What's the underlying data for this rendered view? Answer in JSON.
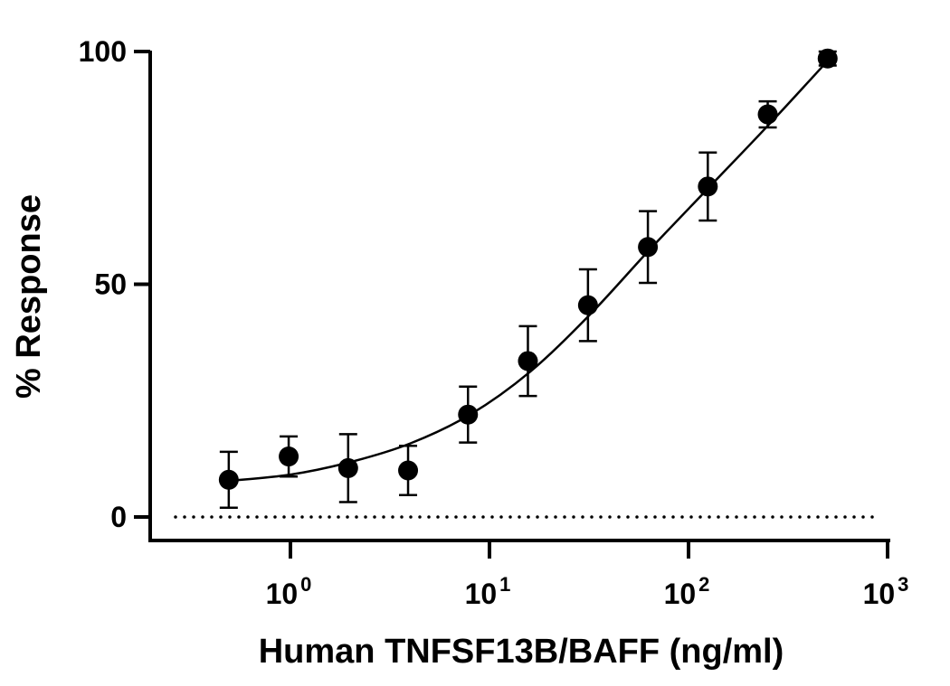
{
  "chart_data": {
    "type": "scatter",
    "xlabel": "Human TNFSF13B/BAFF (ng/ml)",
    "ylabel": "% Response",
    "x_scale": "log10",
    "xlim": [
      0.15,
      1000
    ],
    "ylim": [
      -5,
      100
    ],
    "x_ticks": [
      {
        "value": 1,
        "base": "10",
        "exp": "0"
      },
      {
        "value": 10,
        "base": "10",
        "exp": "1"
      },
      {
        "value": 100,
        "base": "10",
        "exp": "2"
      },
      {
        "value": 1000,
        "base": "10",
        "exp": "3"
      }
    ],
    "y_ticks": [
      {
        "value": 0,
        "label": "0"
      },
      {
        "value": 50,
        "label": "50"
      },
      {
        "value": 100,
        "label": "100"
      }
    ],
    "reference_line": {
      "y": 0,
      "style": "dotted"
    },
    "series": [
      {
        "x": [
          0.49,
          0.98,
          1.95,
          3.9,
          7.8,
          15.6,
          31.25,
          62.5,
          125,
          250,
          500
        ],
        "y": [
          8,
          13,
          10.5,
          10,
          22,
          33.5,
          45.5,
          58,
          71,
          86.5,
          98.5
        ],
        "error": [
          6,
          4.3,
          7.3,
          5.3,
          6,
          7.5,
          7.7,
          7.7,
          7.3,
          2.8,
          1.5
        ],
        "fit": "four-parameter logistic",
        "fit_points": {
          "x": [
            0.5,
            1,
            2,
            4,
            8,
            16,
            32,
            64,
            128,
            256,
            500
          ],
          "y": [
            7.8,
            9.1,
            11.8,
            15.8,
            22,
            31.2,
            43.5,
            57.5,
            71,
            84.5,
            98
          ]
        }
      }
    ]
  }
}
